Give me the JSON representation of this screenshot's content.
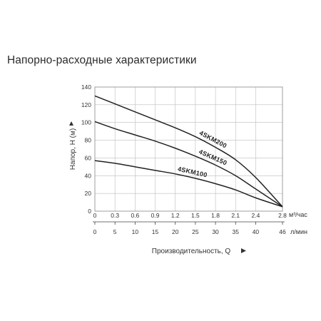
{
  "heading": "Напорно-расходные характеристики",
  "chart_data": {
    "type": "line",
    "title": "Напорно-расходные характеристики",
    "ylabel": "Напор, Н (м)",
    "xlabel": "Производительность, Q",
    "ylim": [
      0,
      140
    ],
    "y_ticks": [
      "0",
      "20",
      "40",
      "60",
      "80",
      "100",
      "120",
      "140"
    ],
    "x": [
      0,
      0.3,
      0.6,
      0.9,
      1.2,
      1.5,
      1.8,
      2.1,
      2.4,
      2.8
    ],
    "x_tick_labels": [
      "0",
      "0.3",
      "0.6",
      "0.9",
      "1.2",
      "1.5",
      "1.8",
      "2.1",
      "2.4",
      "2.8"
    ],
    "x_unit": "м³/час",
    "x2_tick_labels": [
      "0",
      "5",
      "10",
      "15",
      "20",
      "25",
      "30",
      "35",
      "40",
      "46"
    ],
    "x2_unit": "л/мин",
    "grid": true,
    "series": [
      {
        "name": "4SKM200",
        "values": [
          130,
          121,
          112,
          103,
          94,
          84,
          72,
          58,
          38,
          5
        ]
      },
      {
        "name": "4SKM150",
        "values": [
          101,
          93,
          86,
          79,
          71,
          62,
          52,
          40,
          25,
          5
        ]
      },
      {
        "name": "4SKM100",
        "values": [
          57,
          54,
          50,
          46,
          42,
          37,
          31,
          24,
          15,
          5
        ]
      }
    ]
  }
}
